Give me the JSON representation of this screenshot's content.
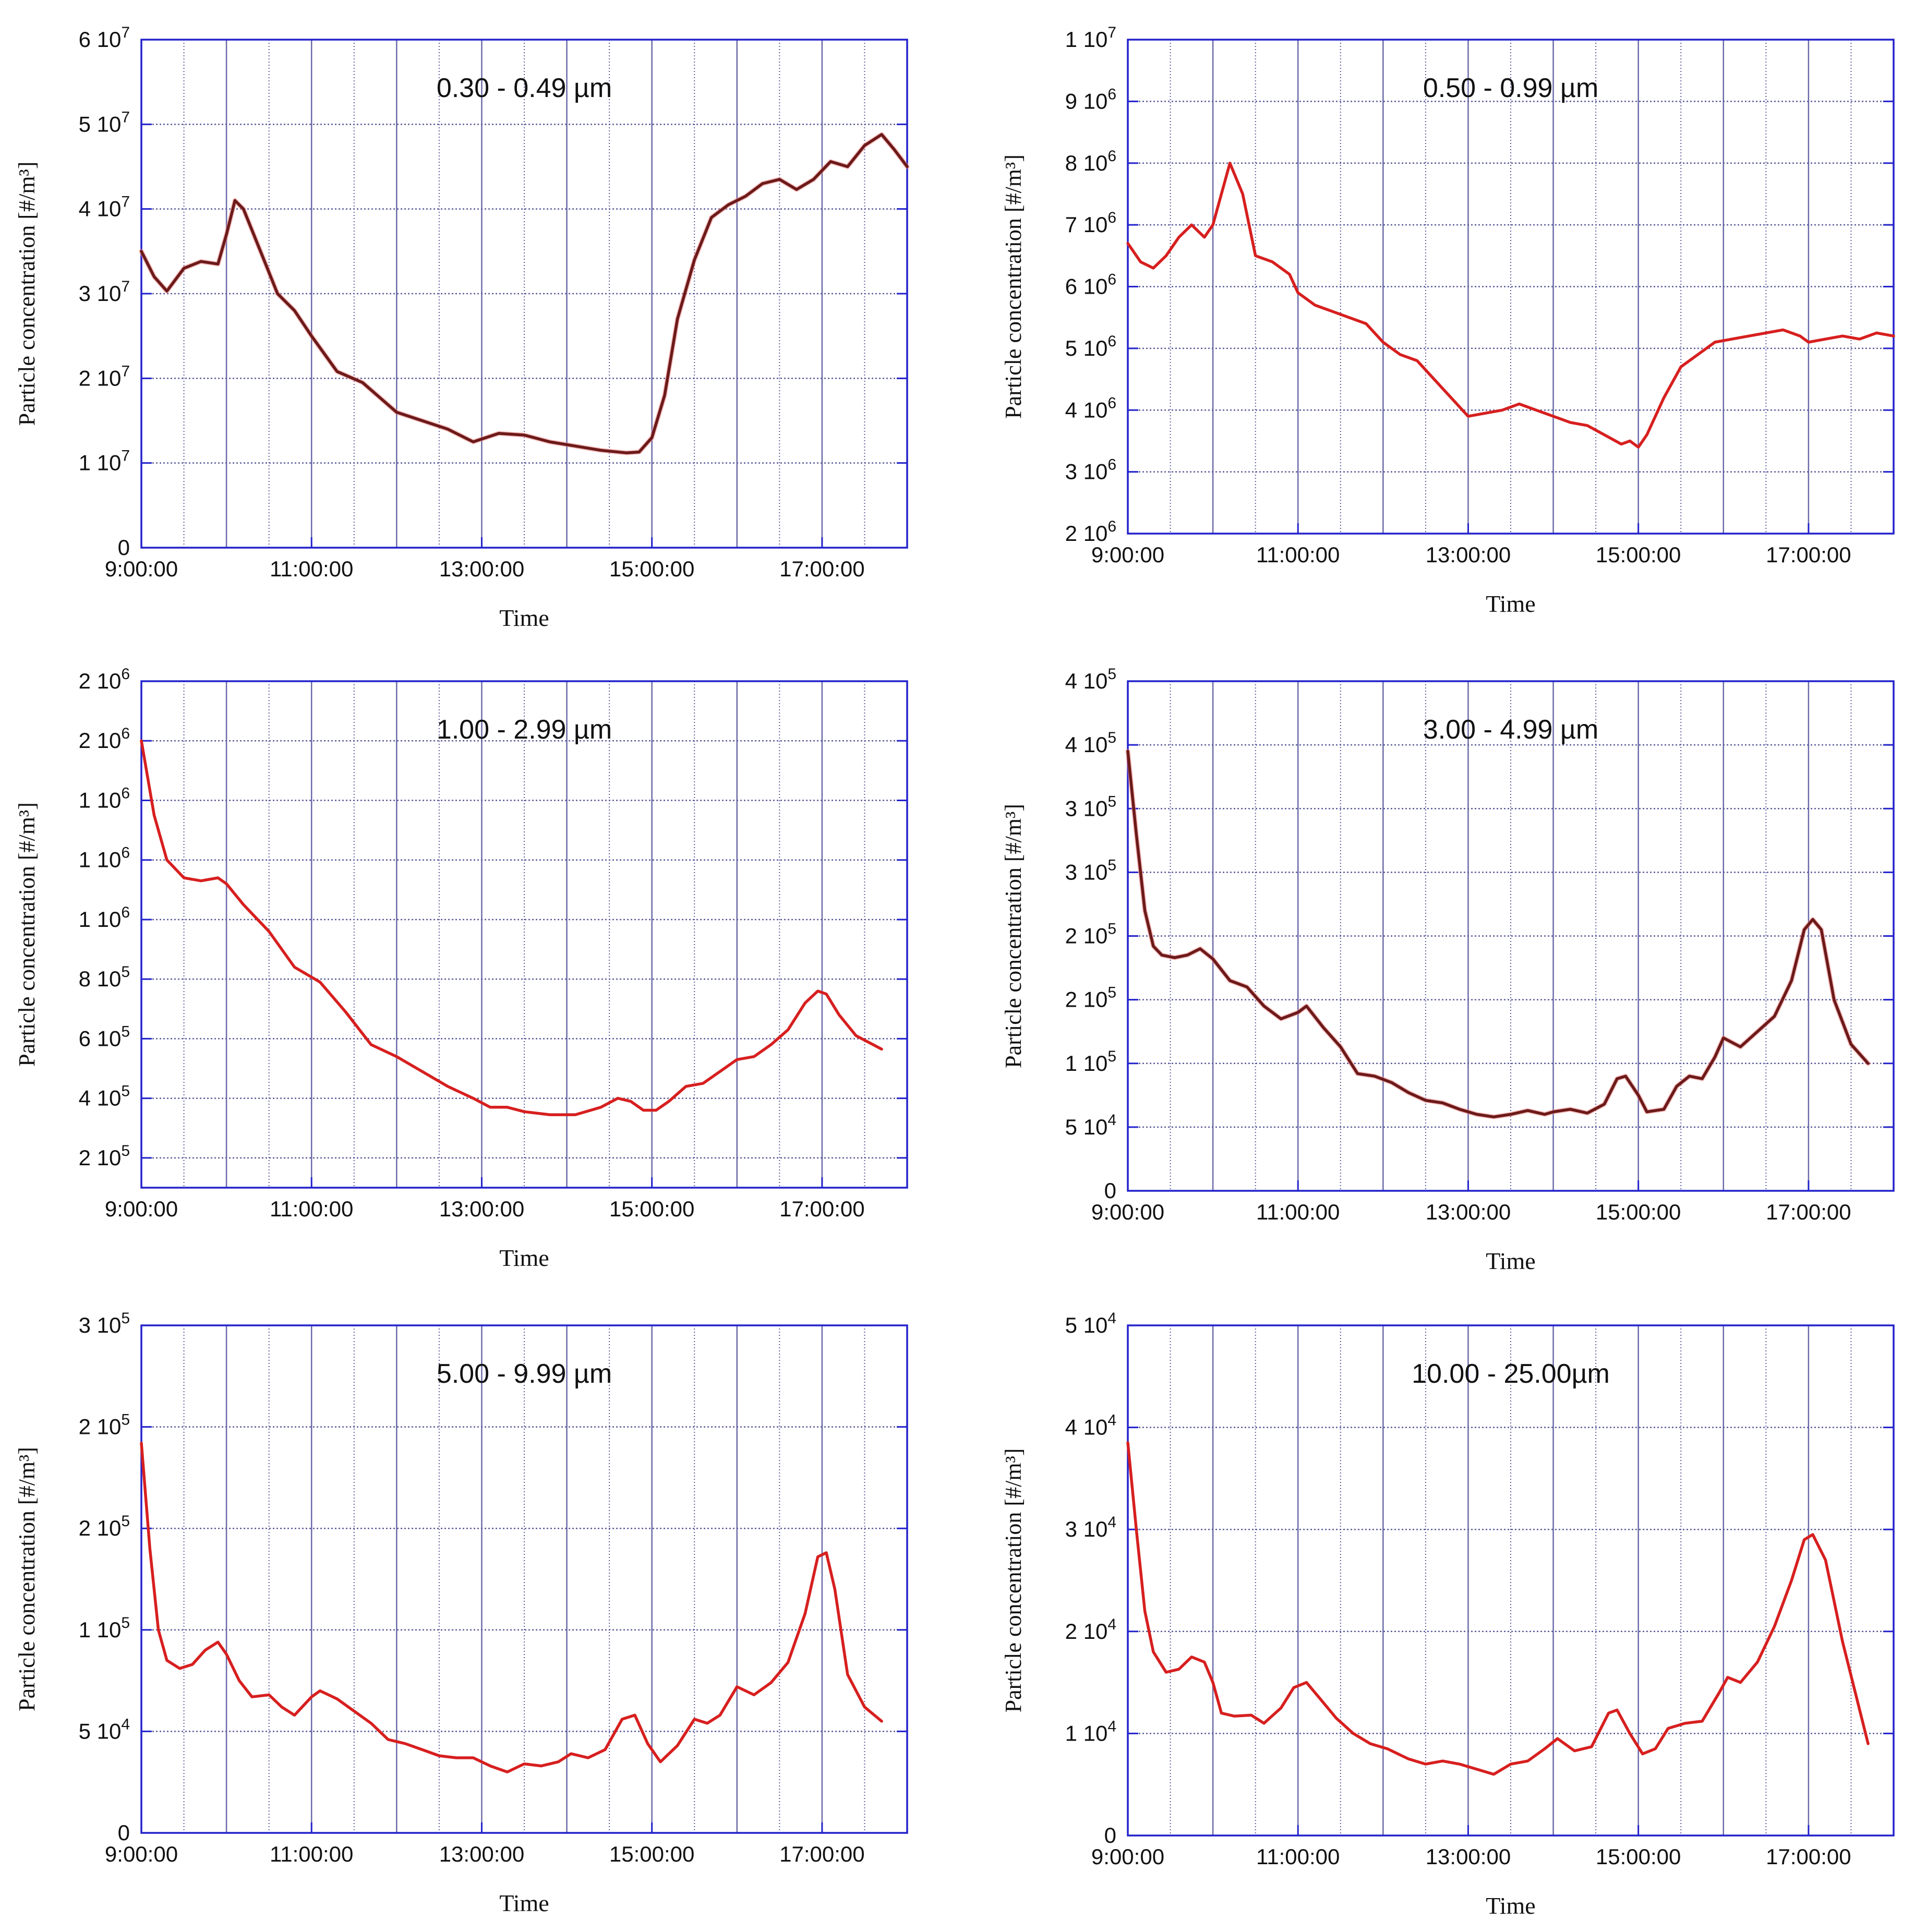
{
  "figure": {
    "colors": {
      "frame": "#2222cc",
      "grid_major": "#6a6aa8",
      "grid_minor": "#5a5a9a",
      "series": "#d71f1f",
      "series_dark": "#6b1a1a",
      "text": "#111111"
    }
  },
  "chart_data": [
    {
      "type": "line",
      "title": "0.30 - 0.49 µm",
      "xlabel": "Time",
      "ylabel": "Particle concentration [#/m³]",
      "x_ticks": [
        "9:00:00",
        "11:00:00",
        "13:00:00",
        "15:00:00",
        "17:00:00"
      ],
      "x_tick_hours": [
        9,
        11,
        13,
        15,
        17
      ],
      "xlim": [
        9,
        18
      ],
      "y_ticks": [
        {
          "v": 0,
          "m": "0",
          "e": ""
        },
        {
          "v": 10000000,
          "m": "1 10",
          "e": "7"
        },
        {
          "v": 20000000,
          "m": "2 10",
          "e": "7"
        },
        {
          "v": 30000000,
          "m": "3 10",
          "e": "7"
        },
        {
          "v": 40000000,
          "m": "4 10",
          "e": "7"
        },
        {
          "v": 50000000,
          "m": "5 10",
          "e": "7"
        },
        {
          "v": 60000000,
          "m": "6 10",
          "e": "7"
        }
      ],
      "ylim": [
        0,
        60000000
      ],
      "line_style": "dark",
      "series": [
        {
          "name": "0.30 - 0.49 µm",
          "x": [
            9.0,
            9.15,
            9.3,
            9.5,
            9.7,
            9.9,
            10.0,
            10.1,
            10.2,
            10.4,
            10.6,
            10.8,
            11.0,
            11.3,
            11.6,
            12.0,
            12.3,
            12.6,
            12.9,
            13.2,
            13.5,
            13.8,
            14.1,
            14.4,
            14.7,
            14.85,
            15.0,
            15.15,
            15.3,
            15.5,
            15.7,
            15.9,
            16.1,
            16.3,
            16.5,
            16.7,
            16.9,
            17.1,
            17.3,
            17.5,
            17.7,
            17.85,
            18.0
          ],
          "y": [
            35000000,
            32000000,
            30300000,
            33000000,
            33800000,
            33500000,
            37000000,
            41000000,
            40000000,
            35000000,
            30000000,
            28000000,
            25000000,
            20800000,
            19500000,
            16000000,
            15000000,
            14000000,
            12500000,
            13500000,
            13300000,
            12500000,
            12000000,
            11500000,
            11200000,
            11300000,
            13000000,
            18000000,
            27000000,
            34000000,
            39000000,
            40500000,
            41500000,
            43000000,
            43500000,
            42300000,
            43500000,
            45600000,
            45000000,
            47500000,
            48800000,
            47000000,
            45000000
          ]
        }
      ]
    },
    {
      "type": "line",
      "title": "0.50 - 0.99 µm",
      "xlabel": "Time",
      "ylabel": "Particle concentration [#/m³]",
      "x_ticks": [
        "9:00:00",
        "11:00:00",
        "13:00:00",
        "15:00:00",
        "17:00:00"
      ],
      "x_tick_hours": [
        9,
        11,
        13,
        15,
        17
      ],
      "xlim": [
        9,
        18
      ],
      "y_ticks": [
        {
          "v": 2000000,
          "m": "2 10",
          "e": "6"
        },
        {
          "v": 3000000,
          "m": "3 10",
          "e": "6"
        },
        {
          "v": 4000000,
          "m": "4 10",
          "e": "6"
        },
        {
          "v": 5000000,
          "m": "5 10",
          "e": "6"
        },
        {
          "v": 6000000,
          "m": "6 10",
          "e": "6"
        },
        {
          "v": 7000000,
          "m": "7 10",
          "e": "6"
        },
        {
          "v": 8000000,
          "m": "8 10",
          "e": "6"
        },
        {
          "v": 9000000,
          "m": "9 10",
          "e": "6"
        },
        {
          "v": 10000000,
          "m": "1 10",
          "e": "7"
        }
      ],
      "ylim": [
        2000000,
        10000000
      ],
      "line_style": "red",
      "series": [
        {
          "name": "0.50 - 0.99 µm",
          "x": [
            9.0,
            9.15,
            9.3,
            9.45,
            9.6,
            9.75,
            9.9,
            10.0,
            10.1,
            10.2,
            10.35,
            10.5,
            10.7,
            10.9,
            11.0,
            11.2,
            11.4,
            11.6,
            11.8,
            12.0,
            12.2,
            12.4,
            12.6,
            12.8,
            13.0,
            13.2,
            13.4,
            13.6,
            13.8,
            14.0,
            14.2,
            14.4,
            14.6,
            14.8,
            14.9,
            15.0,
            15.1,
            15.3,
            15.5,
            15.7,
            15.9,
            16.1,
            16.3,
            16.5,
            16.7,
            16.9,
            17.0,
            17.2,
            17.4,
            17.6,
            17.8,
            18.0
          ],
          "y": [
            6700000,
            6400000,
            6300000,
            6500000,
            6800000,
            7000000,
            6800000,
            7000000,
            7500000,
            8000000,
            7500000,
            6500000,
            6400000,
            6200000,
            5900000,
            5700000,
            5600000,
            5500000,
            5400000,
            5100000,
            4900000,
            4800000,
            4500000,
            4200000,
            3900000,
            3950000,
            4000000,
            4100000,
            4000000,
            3900000,
            3800000,
            3750000,
            3600000,
            3450000,
            3500000,
            3400000,
            3600000,
            4200000,
            4700000,
            4900000,
            5100000,
            5150000,
            5200000,
            5250000,
            5300000,
            5200000,
            5100000,
            5150000,
            5200000,
            5150000,
            5250000,
            5200000
          ]
        }
      ]
    },
    {
      "type": "line",
      "title": "1.00 - 2.99 µm",
      "xlabel": "Time",
      "ylabel": "Particle concentration [#/m³]",
      "x_ticks": [
        "9:00:00",
        "11:00:00",
        "13:00:00",
        "15:00:00",
        "17:00:00"
      ],
      "x_tick_hours": [
        9,
        11,
        13,
        15,
        17
      ],
      "xlim": [
        9,
        18
      ],
      "y_ticks": [
        {
          "v": 200000,
          "m": "2 10",
          "e": "5"
        },
        {
          "v": 400000,
          "m": "4 10",
          "e": "5"
        },
        {
          "v": 600000,
          "m": "6 10",
          "e": "5"
        },
        {
          "v": 800000,
          "m": "8 10",
          "e": "5"
        },
        {
          "v": 1000000,
          "m": "1 10",
          "e": "6"
        },
        {
          "v": 1200000,
          "m": "1 10",
          "e": "6"
        },
        {
          "v": 1400000,
          "m": "1 10",
          "e": "6"
        },
        {
          "v": 1600000,
          "m": "2 10",
          "e": "6"
        },
        {
          "v": 1800000,
          "m": "2 10",
          "e": "6"
        }
      ],
      "ylim": [
        100000,
        1800000
      ],
      "line_style": "red",
      "series": [
        {
          "name": "1.00 - 2.99 µm",
          "x": [
            9.0,
            9.15,
            9.3,
            9.5,
            9.7,
            9.9,
            10.0,
            10.2,
            10.5,
            10.8,
            11.1,
            11.4,
            11.7,
            12.0,
            12.3,
            12.6,
            12.9,
            13.1,
            13.3,
            13.5,
            13.8,
            14.1,
            14.4,
            14.6,
            14.75,
            14.9,
            15.05,
            15.2,
            15.4,
            15.6,
            15.8,
            16.0,
            16.2,
            16.4,
            16.6,
            16.8,
            16.95,
            17.05,
            17.2,
            17.4,
            17.6,
            17.7
          ],
          "y": [
            1600000,
            1350000,
            1200000,
            1140000,
            1130000,
            1140000,
            1120000,
            1050000,
            960000,
            840000,
            790000,
            690000,
            580000,
            540000,
            490000,
            440000,
            400000,
            370000,
            370000,
            355000,
            345000,
            345000,
            370000,
            400000,
            390000,
            360000,
            360000,
            390000,
            440000,
            450000,
            490000,
            530000,
            540000,
            580000,
            630000,
            720000,
            760000,
            750000,
            680000,
            610000,
            580000,
            565000
          ]
        }
      ]
    },
    {
      "type": "line",
      "title": "3.00 - 4.99 µm",
      "xlabel": "Time",
      "ylabel": "Particle concentration [#/m³]",
      "x_ticks": [
        "9:00:00",
        "11:00:00",
        "13:00:00",
        "15:00:00",
        "17:00:00"
      ],
      "x_tick_hours": [
        9,
        11,
        13,
        15,
        17
      ],
      "xlim": [
        9,
        18
      ],
      "y_ticks": [
        {
          "v": 0,
          "m": "0",
          "e": ""
        },
        {
          "v": 50000,
          "m": "5 10",
          "e": "4"
        },
        {
          "v": 100000,
          "m": "1 10",
          "e": "5"
        },
        {
          "v": 150000,
          "m": "2 10",
          "e": "5"
        },
        {
          "v": 200000,
          "m": "2 10",
          "e": "5"
        },
        {
          "v": 250000,
          "m": "3 10",
          "e": "5"
        },
        {
          "v": 300000,
          "m": "3 10",
          "e": "5"
        },
        {
          "v": 350000,
          "m": "4 10",
          "e": "5"
        },
        {
          "v": 400000,
          "m": "4 10",
          "e": "5"
        }
      ],
      "ylim": [
        0,
        400000
      ],
      "line_style": "dark",
      "series": [
        {
          "name": "3.00 - 4.99 µm",
          "x": [
            9.0,
            9.1,
            9.2,
            9.3,
            9.4,
            9.55,
            9.7,
            9.85,
            10.0,
            10.2,
            10.4,
            10.6,
            10.8,
            11.0,
            11.1,
            11.3,
            11.5,
            11.7,
            11.9,
            12.1,
            12.3,
            12.5,
            12.7,
            12.9,
            13.1,
            13.3,
            13.5,
            13.7,
            13.9,
            14.0,
            14.2,
            14.4,
            14.6,
            14.75,
            14.85,
            15.0,
            15.1,
            15.3,
            15.45,
            15.6,
            15.75,
            15.9,
            16.0,
            16.2,
            16.4,
            16.6,
            16.8,
            16.95,
            17.05,
            17.15,
            17.3,
            17.5,
            17.7
          ],
          "y": [
            345000,
            280000,
            220000,
            192000,
            185000,
            183000,
            185000,
            190000,
            182000,
            165000,
            160000,
            145000,
            135000,
            140000,
            145000,
            128000,
            113000,
            92000,
            90000,
            85000,
            77000,
            71000,
            69000,
            64000,
            60000,
            58000,
            60000,
            63000,
            60000,
            62000,
            64000,
            61000,
            68000,
            88000,
            90000,
            75000,
            62000,
            64000,
            82000,
            90000,
            88000,
            105000,
            120000,
            113000,
            125000,
            137000,
            165000,
            205000,
            213000,
            205000,
            150000,
            115000,
            100000
          ]
        }
      ]
    },
    {
      "type": "line",
      "title": "5.00 - 9.99 µm",
      "xlabel": "Time",
      "ylabel": "Particle concentration [#/m³]",
      "x_ticks": [
        "9:00:00",
        "11:00:00",
        "13:00:00",
        "15:00:00",
        "17:00:00"
      ],
      "x_tick_hours": [
        9,
        11,
        13,
        15,
        17
      ],
      "xlim": [
        9,
        18
      ],
      "y_ticks": [
        {
          "v": 0,
          "m": "0",
          "e": ""
        },
        {
          "v": 50000,
          "m": "5 10",
          "e": "4"
        },
        {
          "v": 100000,
          "m": "1 10",
          "e": "5"
        },
        {
          "v": 150000,
          "m": "2 10",
          "e": "5"
        },
        {
          "v": 200000,
          "m": "2 10",
          "e": "5"
        },
        {
          "v": 250000,
          "m": "3 10",
          "e": "5"
        }
      ],
      "ylim": [
        0,
        250000
      ],
      "line_style": "red",
      "series": [
        {
          "name": "5.00 - 9.99 µm",
          "x": [
            9.0,
            9.1,
            9.2,
            9.3,
            9.45,
            9.6,
            9.75,
            9.9,
            10.0,
            10.15,
            10.3,
            10.5,
            10.65,
            10.8,
            11.0,
            11.1,
            11.3,
            11.5,
            11.7,
            11.9,
            12.1,
            12.3,
            12.5,
            12.7,
            12.9,
            13.1,
            13.3,
            13.5,
            13.7,
            13.9,
            14.05,
            14.25,
            14.45,
            14.65,
            14.8,
            14.95,
            15.1,
            15.3,
            15.5,
            15.65,
            15.8,
            16.0,
            16.2,
            16.4,
            16.6,
            16.8,
            16.95,
            17.05,
            17.15,
            17.3,
            17.5,
            17.7
          ],
          "y": [
            192000,
            140000,
            100000,
            85000,
            81000,
            83000,
            90000,
            94000,
            88000,
            75000,
            67000,
            68000,
            62000,
            58000,
            67000,
            70000,
            66000,
            60000,
            54000,
            46000,
            44000,
            41000,
            38000,
            37000,
            37000,
            33000,
            30000,
            34000,
            33000,
            35000,
            39000,
            37000,
            41000,
            56000,
            58000,
            44000,
            35000,
            43000,
            56000,
            54000,
            58000,
            72000,
            68000,
            74000,
            84000,
            108000,
            136000,
            138000,
            120000,
            78000,
            62000,
            55000
          ]
        }
      ]
    },
    {
      "type": "line",
      "title": "10.00 - 25.00µm",
      "xlabel": "Time",
      "ylabel": "Particle concentration [#/m³]",
      "x_ticks": [
        "9:00:00",
        "11:00:00",
        "13:00:00",
        "15:00:00",
        "17:00:00"
      ],
      "x_tick_hours": [
        9,
        11,
        13,
        15,
        17
      ],
      "xlim": [
        9,
        18
      ],
      "y_ticks": [
        {
          "v": 0,
          "m": "0",
          "e": ""
        },
        {
          "v": 10000,
          "m": "1 10",
          "e": "4"
        },
        {
          "v": 20000,
          "m": "2 10",
          "e": "4"
        },
        {
          "v": 30000,
          "m": "3 10",
          "e": "4"
        },
        {
          "v": 40000,
          "m": "4 10",
          "e": "4"
        },
        {
          "v": 50000,
          "m": "5 10",
          "e": "4"
        }
      ],
      "ylim": [
        0,
        50000
      ],
      "line_style": "red",
      "series": [
        {
          "name": "10.00 - 25.00µm",
          "x": [
            9.0,
            9.1,
            9.2,
            9.3,
            9.45,
            9.6,
            9.75,
            9.9,
            10.0,
            10.1,
            10.25,
            10.45,
            10.6,
            10.8,
            10.95,
            11.1,
            11.25,
            11.45,
            11.65,
            11.85,
            12.05,
            12.3,
            12.5,
            12.7,
            12.9,
            13.1,
            13.3,
            13.5,
            13.7,
            13.9,
            14.05,
            14.25,
            14.45,
            14.65,
            14.75,
            14.9,
            15.05,
            15.2,
            15.35,
            15.55,
            15.75,
            15.95,
            16.05,
            16.2,
            16.4,
            16.6,
            16.8,
            16.95,
            17.05,
            17.2,
            17.4,
            17.55,
            17.7
          ],
          "y": [
            38500,
            30000,
            22000,
            18000,
            16000,
            16300,
            17500,
            17000,
            15000,
            12000,
            11700,
            11800,
            11000,
            12500,
            14500,
            15000,
            13500,
            11500,
            10000,
            9000,
            8500,
            7500,
            7000,
            7300,
            7000,
            6500,
            6000,
            7000,
            7300,
            8500,
            9500,
            8300,
            8700,
            12000,
            12300,
            10000,
            8000,
            8500,
            10500,
            11000,
            11200,
            14000,
            15500,
            15000,
            17000,
            20500,
            25000,
            29000,
            29500,
            27000,
            19000,
            14000,
            9000
          ]
        }
      ]
    }
  ]
}
